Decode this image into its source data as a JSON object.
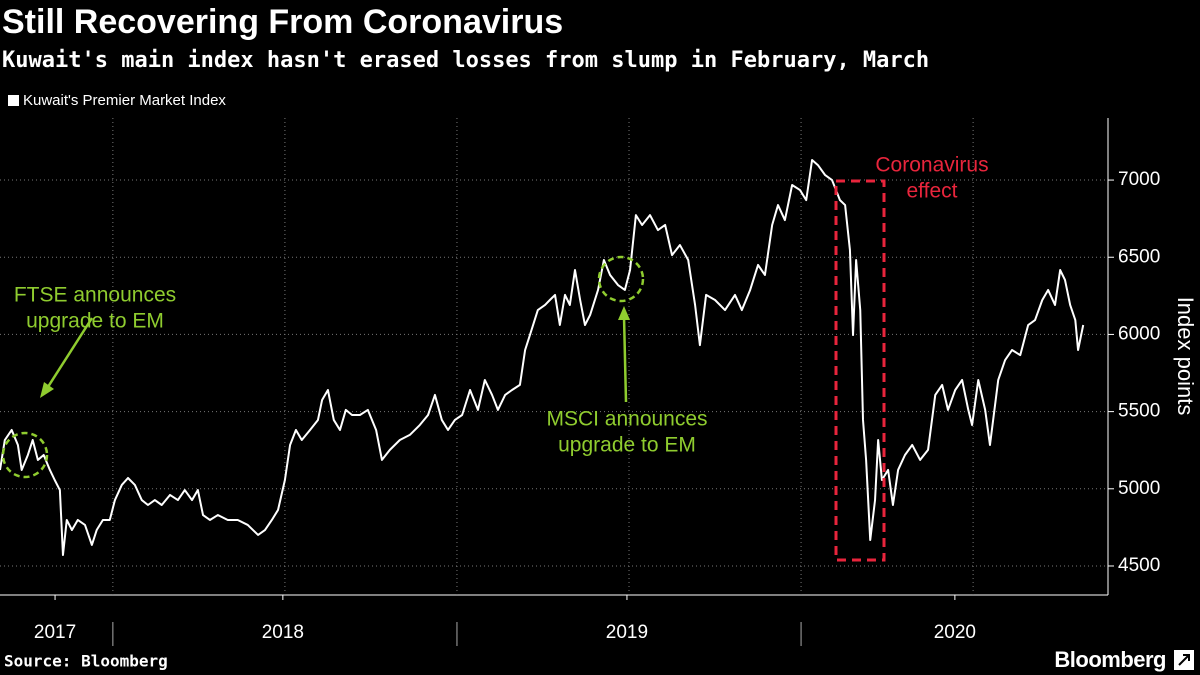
{
  "chart_data": {
    "type": "line",
    "title": "Still Recovering From Coronavirus",
    "subtitle": "Kuwait's main index hasn't erased losses from slump in February, March",
    "y_label": "Index points",
    "source": "Source: Bloomberg",
    "brand": "Bloomberg",
    "x": [
      2017.672,
      2017.686,
      2017.706,
      2017.724,
      2017.735,
      2017.753,
      2017.767,
      2017.782,
      2017.799,
      2017.817,
      2017.831,
      2017.846,
      2017.855,
      2017.866,
      2017.881,
      2017.898,
      2017.919,
      2017.939,
      2017.953,
      2017.971,
      2017.991,
      2018.006,
      2018.026,
      2018.044,
      2018.064,
      2018.084,
      2018.102,
      2018.122,
      2018.142,
      2018.166,
      2018.189,
      2018.209,
      2018.23,
      2018.247,
      2018.262,
      2018.282,
      2018.305,
      2018.334,
      2018.363,
      2018.392,
      2018.422,
      2018.442,
      2018.462,
      2018.48,
      2018.5,
      2018.515,
      2018.532,
      2018.549,
      2018.573,
      2018.596,
      2018.608,
      2018.625,
      2018.642,
      2018.66,
      2018.677,
      2018.695,
      2018.718,
      2018.741,
      2018.765,
      2018.782,
      2018.805,
      2018.834,
      2018.863,
      2018.892,
      2018.916,
      2018.936,
      2018.956,
      2018.974,
      2018.994,
      2019.015,
      2019.038,
      2019.061,
      2019.081,
      2019.102,
      2019.119,
      2019.14,
      2019.16,
      2019.183,
      2019.198,
      2019.212,
      2019.235,
      2019.256,
      2019.27,
      2019.285,
      2019.299,
      2019.314,
      2019.328,
      2019.343,
      2019.358,
      2019.372,
      2019.387,
      2019.41,
      2019.427,
      2019.445,
      2019.468,
      2019.488,
      2019.503,
      2019.52,
      2019.538,
      2019.561,
      2019.584,
      2019.605,
      2019.625,
      2019.648,
      2019.672,
      2019.692,
      2019.706,
      2019.724,
      2019.75,
      2019.779,
      2019.808,
      2019.828,
      2019.852,
      2019.875,
      2019.895,
      2019.916,
      2019.933,
      2019.953,
      2019.974,
      2019.997,
      2020.015,
      2020.032,
      2020.049,
      2020.07,
      2020.09,
      2020.113,
      2020.128,
      2020.142,
      2020.151,
      2020.16,
      2020.172,
      2020.18,
      2020.189,
      2020.201,
      2020.215,
      2020.224,
      2020.235,
      2020.253,
      2020.267,
      2020.282,
      2020.302,
      2020.323,
      2020.346,
      2020.369,
      2020.39,
      2020.41,
      2020.427,
      2020.448,
      2020.468,
      2020.486,
      2020.497,
      2020.515,
      2020.535,
      2020.549,
      2020.573,
      2020.593,
      2020.613,
      2020.637,
      2020.66,
      2020.68,
      2020.701,
      2020.718,
      2020.738,
      2020.753,
      2020.767,
      2020.782,
      2020.797,
      2020.805,
      2020.82
    ],
    "series": [
      {
        "name": "Kuwait's Premier Market Index",
        "color": "#ffffff",
        "values": [
          5122,
          5316,
          5381,
          5284,
          5122,
          5219,
          5316,
          5187,
          5219,
          5122,
          5057,
          4992,
          4571,
          4798,
          4733,
          4798,
          4766,
          4636,
          4733,
          4798,
          4798,
          4927,
          5025,
          5070,
          5025,
          4927,
          4895,
          4927,
          4895,
          4960,
          4927,
          4992,
          4927,
          4992,
          4830,
          4798,
          4830,
          4798,
          4798,
          4766,
          4701,
          4733,
          4798,
          4863,
          5057,
          5284,
          5381,
          5316,
          5381,
          5446,
          5575,
          5640,
          5446,
          5381,
          5511,
          5478,
          5478,
          5511,
          5381,
          5187,
          5252,
          5316,
          5349,
          5413,
          5478,
          5608,
          5446,
          5381,
          5446,
          5478,
          5640,
          5511,
          5705,
          5608,
          5511,
          5608,
          5640,
          5673,
          5899,
          5996,
          6158,
          6191,
          6223,
          6256,
          6061,
          6256,
          6191,
          6417,
          6223,
          6061,
          6126,
          6288,
          6482,
          6385,
          6320,
          6288,
          6417,
          6773,
          6709,
          6773,
          6676,
          6709,
          6514,
          6579,
          6482,
          6191,
          5931,
          6256,
          6223,
          6158,
          6256,
          6158,
          6288,
          6450,
          6385,
          6709,
          6838,
          6741,
          6968,
          6935,
          6870,
          7130,
          7097,
          7032,
          7000,
          6870,
          6838,
          6547,
          5996,
          6482,
          6158,
          5446,
          5187,
          4668,
          4927,
          5316,
          5057,
          5122,
          4895,
          5122,
          5219,
          5284,
          5187,
          5252,
          5608,
          5673,
          5511,
          5640,
          5705,
          5511,
          5413,
          5705,
          5511,
          5284,
          5705,
          5834,
          5899,
          5866,
          6061,
          6093,
          6223,
          6288,
          6191,
          6417,
          6353,
          6191,
          6093,
          5899,
          6061
        ]
      }
    ],
    "xlim": [
      2017.672,
      2020.892
    ],
    "ylim": [
      4312,
      7402
    ],
    "yticks": [
      4500,
      5000,
      5500,
      6000,
      6500,
      7000
    ],
    "xticks": [
      {
        "value": 2017.832,
        "label": "2017"
      },
      {
        "value": 2018.494,
        "label": "2018"
      },
      {
        "value": 2019.494,
        "label": "2019"
      },
      {
        "value": 2020.447,
        "label": "2020"
      }
    ],
    "xminor": [
      2018,
      2019,
      2020
    ],
    "xgrid": [
      2018,
      2018.5,
      2019,
      2019.5,
      2020,
      2020.5
    ],
    "grid": true,
    "annotations": [
      {
        "lines": [
          "FTSE announces",
          "upgrade to EM"
        ],
        "color": "#8fcc2f"
      },
      {
        "lines": [
          "MSCI announces",
          "upgrade to EM"
        ],
        "color": "#8fcc2f"
      },
      {
        "lines": [
          "Coronavirus",
          "effect"
        ],
        "color": "#e8253c"
      }
    ]
  }
}
